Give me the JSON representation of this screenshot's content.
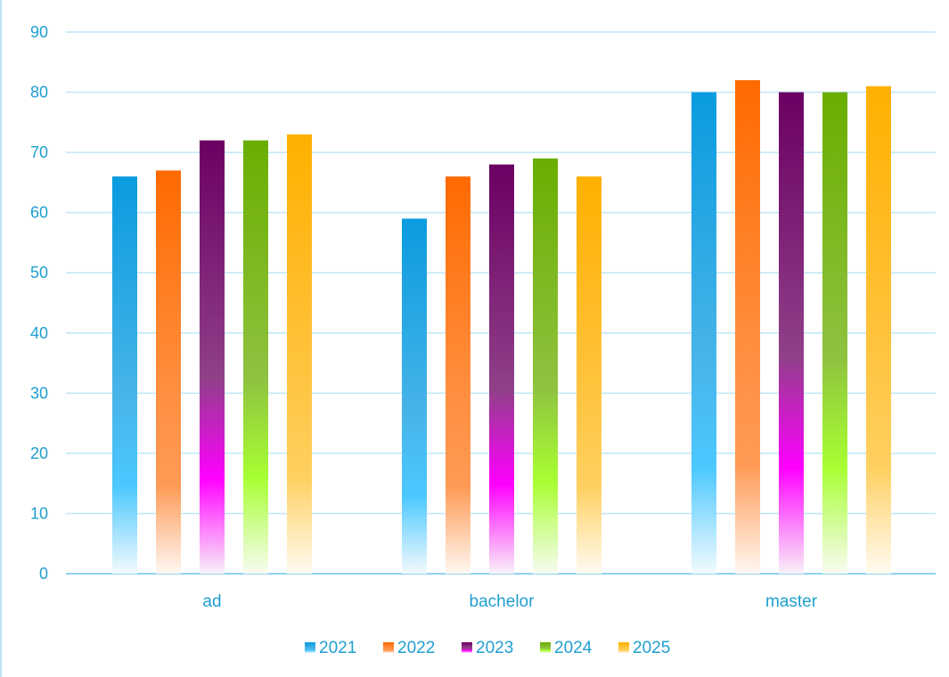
{
  "chart_data": {
    "type": "bar",
    "categories": [
      "ad",
      "bachelor",
      "master"
    ],
    "series": [
      {
        "name": "2021",
        "values": [
          66,
          59,
          80
        ],
        "color": "#0a9be0"
      },
      {
        "name": "2022",
        "values": [
          67,
          66,
          82
        ],
        "color": "#ff6a00"
      },
      {
        "name": "2023",
        "values": [
          72,
          68,
          80
        ],
        "color": "#6b0062"
      },
      {
        "name": "2024",
        "values": [
          72,
          69,
          80
        ],
        "color": "#6aae00"
      },
      {
        "name": "2025",
        "values": [
          73,
          66,
          81
        ],
        "color": "#ffb000"
      }
    ],
    "title": "",
    "xlabel": "",
    "ylabel": "",
    "ylim": [
      0,
      90
    ],
    "yticks": [
      0,
      10,
      20,
      30,
      40,
      50,
      60,
      70,
      80,
      90
    ],
    "grid": true,
    "legend_position": "bottom",
    "colors": {
      "axis_text": "#1f9fd0",
      "gridline": "#bfe6f7",
      "frame": "#bfe3f5"
    }
  }
}
